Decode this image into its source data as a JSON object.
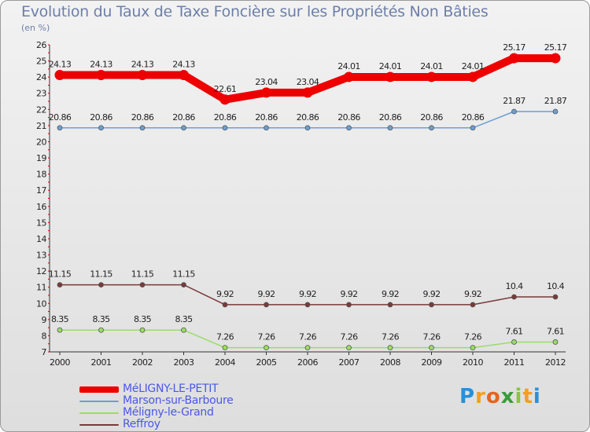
{
  "header": {
    "title": "Evolution du Taux de Taxe Foncière sur les Propriétés Non Bâties",
    "unit": "(en %)"
  },
  "chart_data": {
    "type": "line",
    "title": "Evolution du Taux de Taxe Foncière sur les Propriétés Non Bâties",
    "ylabel": "(en %)",
    "xlabel": "",
    "categories": [
      "2000",
      "2001",
      "2002",
      "2003",
      "2004",
      "2005",
      "2006",
      "2007",
      "2008",
      "2009",
      "2010",
      "2011",
      "2012"
    ],
    "ylim": [
      7,
      26
    ],
    "yticks": [
      7,
      8,
      9,
      10,
      11,
      12,
      13,
      14,
      15,
      16,
      17,
      18,
      19,
      20,
      21,
      22,
      23,
      24,
      25,
      26
    ],
    "grid": false,
    "legend_position": "bottom-left",
    "series": [
      {
        "name": "MéLIGNY-LE-PETIT",
        "color": "#ee0000",
        "style": "thick",
        "values": [
          24.13,
          24.13,
          24.13,
          24.13,
          22.61,
          23.04,
          23.04,
          24.01,
          24.01,
          24.01,
          24.01,
          25.17,
          25.17
        ],
        "labels": [
          "24.13",
          "24.13",
          "24.13",
          "24.13",
          "22.61",
          "23.04",
          "23.04",
          "24.01",
          "24.01",
          "24.01",
          "24.01",
          "25.17",
          "25.17"
        ]
      },
      {
        "name": "Marson-sur-Barboure",
        "color": "#6b9fd3",
        "style": "thin",
        "values": [
          20.86,
          20.86,
          20.86,
          20.86,
          20.86,
          20.86,
          20.86,
          20.86,
          20.86,
          20.86,
          20.86,
          21.87,
          21.87
        ],
        "labels": [
          "20.86",
          "20.86",
          "20.86",
          "20.86",
          "20.86",
          "20.86",
          "20.86",
          "20.86",
          "20.86",
          "20.86",
          "20.86",
          "21.87",
          "21.87"
        ]
      },
      {
        "name": "Méligny-le-Grand",
        "color": "#99dd66",
        "style": "thin",
        "values": [
          8.35,
          8.35,
          8.35,
          8.35,
          7.26,
          7.26,
          7.26,
          7.26,
          7.26,
          7.26,
          7.26,
          7.61,
          7.61
        ],
        "labels": [
          "8.35",
          "8.35",
          "8.35",
          "8.35",
          "7.26",
          "7.26",
          "7.26",
          "7.26",
          "7.26",
          "7.26",
          "7.26",
          "7.61",
          "7.61"
        ]
      },
      {
        "name": "Reffroy",
        "color": "#7a3a3a",
        "style": "thin",
        "values": [
          11.15,
          11.15,
          11.15,
          11.15,
          9.92,
          9.92,
          9.92,
          9.92,
          9.92,
          9.92,
          9.92,
          10.4,
          10.4
        ],
        "labels": [
          "11.15",
          "11.15",
          "11.15",
          "11.15",
          "9.92",
          "9.92",
          "9.92",
          "9.92",
          "9.92",
          "9.92",
          "9.92",
          "10.4",
          "10.4"
        ]
      }
    ]
  },
  "logo": {
    "letters": [
      "P",
      "r",
      "o",
      "x",
      "i",
      "t",
      "i"
    ],
    "colors": [
      "#2a8fd8",
      "#f0a020",
      "#e8641e",
      "#3a9b3a",
      "#8bc43f",
      "#f0a020",
      "#2a8fd8"
    ]
  }
}
